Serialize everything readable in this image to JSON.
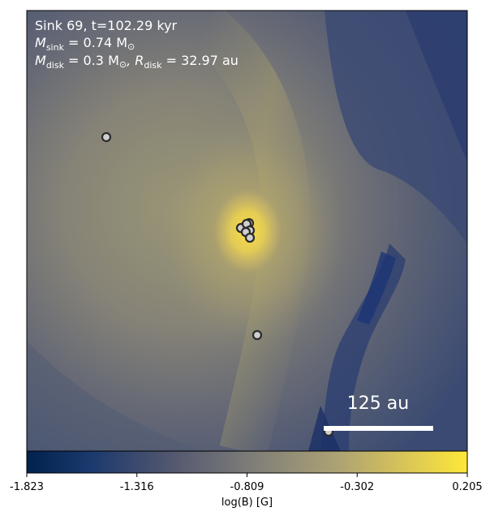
{
  "info": {
    "line1": "Sink 69, t=102.29 kyr",
    "line2_prefix": "M",
    "line2_sub": "sink",
    "line2_rest": " = 0.74 M",
    "line2_sun": "⊙",
    "line3_prefix": "M",
    "line3_sub": "disk",
    "line3_mid": " = 0.3 M",
    "line3_sun": "⊙",
    "line3_r": ", R",
    "line3_rsub": "disk",
    "line3_rest": " = 32.97 au"
  },
  "scale_bar": {
    "label": "125 au"
  },
  "colorbar": {
    "label": "log(B) [G]",
    "ticks": [
      "-1.823",
      "-1.316",
      "-0.809",
      "-0.302",
      "0.205"
    ],
    "colormap": "cividis",
    "min": -1.823,
    "max": 0.205
  },
  "colors": {
    "dark": "#00224e",
    "mid": "#7c7b78",
    "bright": "#fee838",
    "marker_fill": "#cfcfcf",
    "marker_edge": "#2a2a2a"
  },
  "sinks": {
    "count": 10
  }
}
